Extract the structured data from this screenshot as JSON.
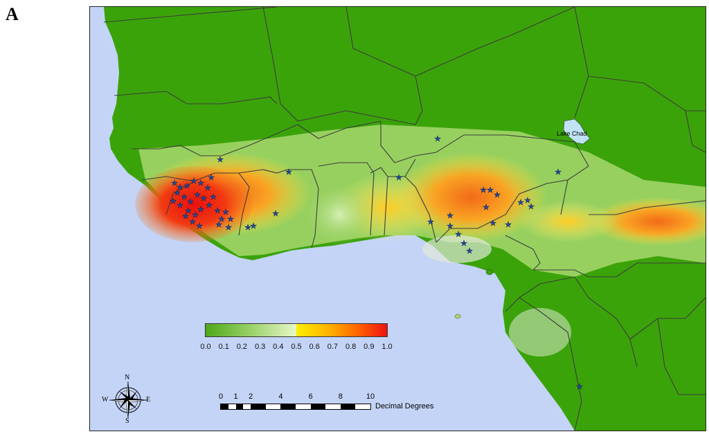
{
  "figure": {
    "panel_letter": "A",
    "lake_label": "Lake Chad"
  },
  "legend": {
    "ticks": [
      "0.0",
      "0.1",
      "0.2",
      "0.3",
      "0.4",
      "0.5",
      "0.6",
      "0.7",
      "0.8",
      "0.9",
      "1.0"
    ],
    "range": [
      0.0,
      1.0
    ],
    "low_color": "#4ea81a",
    "mid_color": "#ffee00",
    "high_color": "#ee1410"
  },
  "scale_bar": {
    "ticks": [
      "0",
      "1",
      "2",
      "4",
      "6",
      "8",
      "10"
    ],
    "unit_label": "Decimal Degrees"
  },
  "compass": {
    "north": "N",
    "south": "S",
    "east": "E",
    "west": "W"
  },
  "colors": {
    "ocean": "#c4d4f6",
    "land_low": "#3ba30a",
    "border": "#3c3c3c",
    "marker": "#1e4fa8"
  }
}
